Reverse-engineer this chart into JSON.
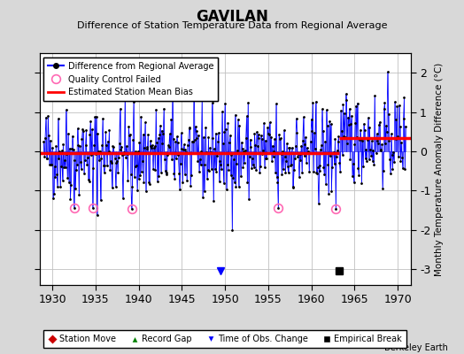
{
  "title": "GAVILAN",
  "subtitle": "Difference of Station Temperature Data from Regional Average",
  "ylabel": "Monthly Temperature Anomaly Difference (°C)",
  "xlabel_note": "Berkeley Earth",
  "xlim": [
    1928.5,
    1971.5
  ],
  "ylim": [
    -3.4,
    2.5
  ],
  "yticks": [
    -3,
    -2,
    -1,
    0,
    1,
    2
  ],
  "xticks": [
    1930,
    1935,
    1940,
    1945,
    1950,
    1955,
    1960,
    1965,
    1970
  ],
  "bg_color": "#d8d8d8",
  "plot_bg_color": "#ffffff",
  "bias_segment1_y": -0.05,
  "bias_segment2_y": 0.33,
  "break_x": 1963.2,
  "empirical_break_x": 1963.2,
  "time_of_obs_x": 1949.5,
  "seed": 42,
  "years_start": 1929.0,
  "years_end": 1971.0
}
